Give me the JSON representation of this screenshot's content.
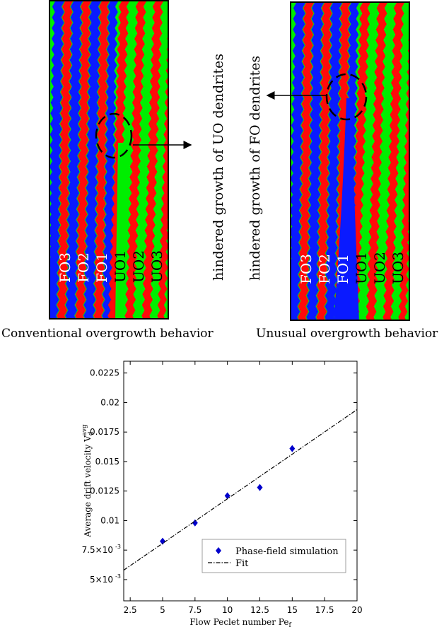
{
  "figure": {
    "left_panel": {
      "labels": [
        "FO3",
        "FO2",
        "FO1",
        "UO1",
        "UO2",
        "UO3"
      ],
      "caption": "Conventional overgrowth behavior",
      "colors": {
        "fo": "#0a1aff",
        "uo": "#00ee00",
        "sep": "#ff0a0a"
      }
    },
    "right_panel": {
      "labels": [
        "FO3",
        "FO2",
        "FO1",
        "UO1",
        "UO2",
        "UO3"
      ],
      "caption": "Unusual overgrowth behavior"
    },
    "annotation_uo": "hindered growth of UO dendrites",
    "annotation_fo": "hindered growth of FO dendrites"
  },
  "chart_data": {
    "type": "scatter",
    "xlabel": "Flow Peclet number Pe",
    "xlabel_sub": "f",
    "ylabel": "Average drift velocity V",
    "ylabel_sub": "d",
    "ylabel_sup": "avg",
    "xlim": [
      2,
      20
    ],
    "ylim": [
      0.0032,
      0.0235
    ],
    "xticks": [
      "2.5",
      "5",
      "7.5",
      "10",
      "12.5",
      "15",
      "17.5",
      "20"
    ],
    "xtick_values": [
      2.5,
      5,
      7.5,
      10,
      12.5,
      15,
      17.5,
      20
    ],
    "yticks": [
      "5×10",
      "7.5×10",
      "0.01",
      "0.0125",
      "0.015",
      "0.0175",
      "0.02",
      "0.0225"
    ],
    "ytick_exp": [
      "-3",
      "-3",
      "",
      "",
      "",
      "",
      "",
      ""
    ],
    "ytick_values": [
      0.005,
      0.0075,
      0.01,
      0.0125,
      0.015,
      0.0175,
      0.02,
      0.0225
    ],
    "series": [
      {
        "name": "Phase-field simulation",
        "kind": "points",
        "color": "#0000cc",
        "x": [
          5,
          7.5,
          10,
          12.5,
          15
        ],
        "y": [
          0.00825,
          0.0098,
          0.0121,
          0.0128,
          0.0161
        ]
      },
      {
        "name": "Fit",
        "kind": "line",
        "style": "dashdot",
        "color": "#000000",
        "x": [
          2,
          20
        ],
        "y": [
          0.0058,
          0.0194
        ]
      }
    ],
    "legend_position": "lower-right"
  }
}
